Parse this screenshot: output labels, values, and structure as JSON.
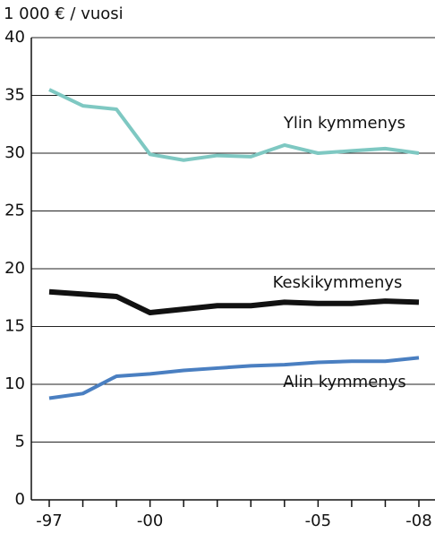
{
  "chart_data": {
    "type": "line",
    "y_label": "1 000 € / vuosi",
    "categories": [
      "-97",
      null,
      null,
      "-00",
      null,
      null,
      null,
      null,
      "-05",
      null,
      null,
      "-08"
    ],
    "series": [
      {
        "name": "Ylin kymmenys",
        "color": "#7ec8c2",
        "values": [
          35.5,
          34.1,
          33.8,
          29.9,
          29.4,
          29.8,
          29.7,
          30.7,
          30.0,
          30.2,
          30.4,
          30.0
        ]
      },
      {
        "name": "Keskikymmenys",
        "color": "#111111",
        "values": [
          18.0,
          17.8,
          17.6,
          16.2,
          16.5,
          16.8,
          16.8,
          17.1,
          17.0,
          17.0,
          17.2,
          17.1
        ]
      },
      {
        "name": "Alin kymmenys",
        "color": "#4a7fc1",
        "values": [
          8.8,
          9.2,
          10.7,
          10.9,
          11.2,
          11.4,
          11.6,
          11.7,
          11.9,
          12.0,
          12.0,
          12.3
        ]
      }
    ],
    "ylim": [
      0,
      40
    ],
    "yticks": [
      0,
      5,
      10,
      15,
      20,
      25,
      30,
      35,
      40
    ],
    "grid": true
  }
}
